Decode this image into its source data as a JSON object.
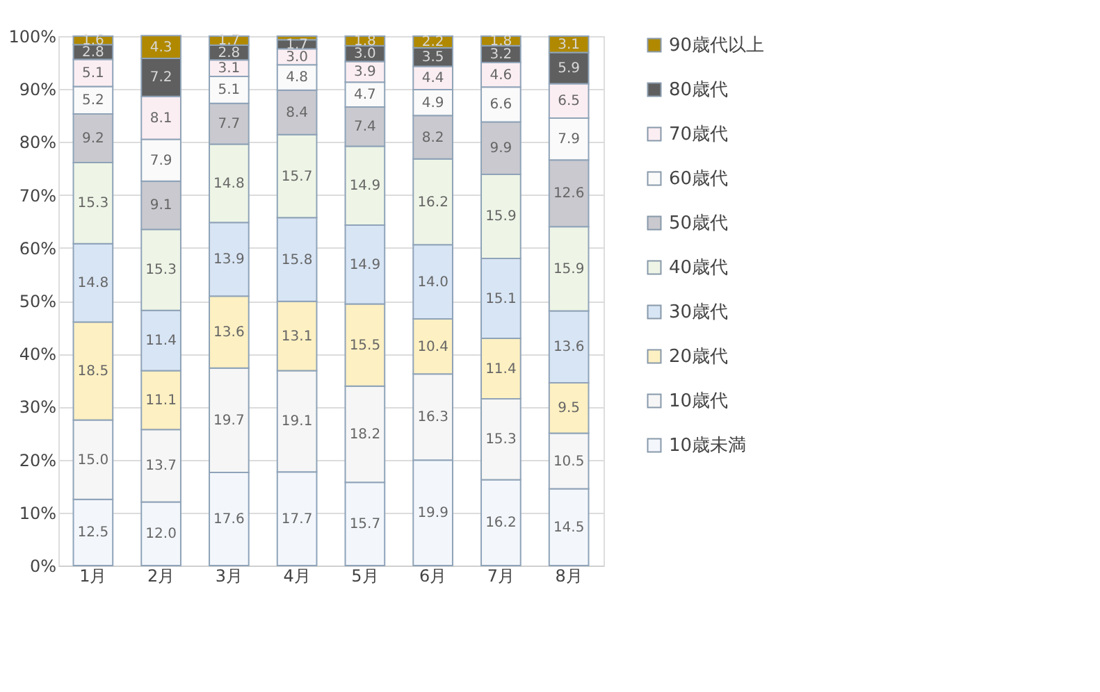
{
  "chart_data": {
    "type": "bar",
    "stacked": true,
    "categories": [
      "1月",
      "2月",
      "3月",
      "4月",
      "5月",
      "6月",
      "7月",
      "8月"
    ],
    "series": [
      {
        "name": "10歳未満",
        "color": "#f3f7fc",
        "values": [
          12.5,
          12.0,
          17.6,
          17.7,
          15.7,
          19.9,
          16.2,
          14.5
        ]
      },
      {
        "name": "10歳代",
        "color": "#f6f6f6",
        "values": [
          15.0,
          13.7,
          19.7,
          19.1,
          18.2,
          16.3,
          15.3,
          10.5
        ]
      },
      {
        "name": "20歳代",
        "color": "#fdf0c2",
        "values": [
          18.5,
          11.1,
          13.6,
          13.1,
          15.5,
          10.4,
          11.4,
          9.5
        ]
      },
      {
        "name": "30歳代",
        "color": "#d8e5f5",
        "values": [
          14.8,
          11.4,
          13.9,
          15.8,
          14.9,
          14.0,
          15.1,
          13.6
        ]
      },
      {
        "name": "40歳代",
        "color": "#eef5e6",
        "values": [
          15.3,
          15.3,
          14.8,
          15.7,
          14.9,
          16.2,
          15.9,
          15.9
        ]
      },
      {
        "name": "50歳代",
        "color": "#c9c9cf",
        "values": [
          9.2,
          9.1,
          7.7,
          8.4,
          7.4,
          8.2,
          9.9,
          12.6
        ]
      },
      {
        "name": "60歳代",
        "color": "#fafafa",
        "values": [
          5.2,
          7.9,
          5.1,
          4.8,
          4.7,
          4.9,
          6.6,
          7.9
        ]
      },
      {
        "name": "70歳代",
        "color": "#fbeef2",
        "values": [
          5.1,
          8.1,
          3.1,
          3.0,
          3.9,
          4.4,
          4.6,
          6.5
        ]
      },
      {
        "name": "80歳代",
        "color": "#5f5f5f",
        "values": [
          2.8,
          7.2,
          2.8,
          1.7,
          3.0,
          3.5,
          3.2,
          5.9
        ]
      },
      {
        "name": "90歳代以上",
        "color": "#b08900",
        "values": [
          1.6,
          4.3,
          1.7,
          0.7,
          1.8,
          2.2,
          1.8,
          3.1
        ]
      }
    ],
    "ylim": [
      0,
      100
    ],
    "yticks": [
      {
        "value": 0,
        "label": "0%"
      },
      {
        "value": 10,
        "label": "10%"
      },
      {
        "value": 20,
        "label": "20%"
      },
      {
        "value": 30,
        "label": "30%"
      },
      {
        "value": 40,
        "label": "40%"
      },
      {
        "value": 50,
        "label": "50%"
      },
      {
        "value": 60,
        "label": "60%"
      },
      {
        "value": 70,
        "label": "70%"
      },
      {
        "value": 80,
        "label": "80%"
      },
      {
        "value": 90,
        "label": "90%"
      },
      {
        "value": 100,
        "label": "100%"
      }
    ],
    "grid": "y",
    "legend": "right",
    "value_labels": [
      [
        "12.5",
        "15.0",
        "18.5",
        "14.8",
        "15.3",
        "9.2",
        "5.2",
        "5.1",
        "2.8",
        "1.6"
      ],
      [
        "12.0",
        "13.7",
        "11.1",
        "11.4",
        "15.3",
        "9.1",
        "7.9",
        "8.1",
        "7.2",
        "4.3"
      ],
      [
        "17.6",
        "19.7",
        "13.6",
        "13.9",
        "14.8",
        "7.7",
        "5.1",
        "3.1",
        "2.8",
        "1.7"
      ],
      [
        "17.7",
        "19.1",
        "13.1",
        "15.8",
        "15.7",
        "8.4",
        "4.8",
        "3.0",
        "1.7",
        null
      ],
      [
        "15.7",
        "18.2",
        "15.5",
        "14.9",
        "14.9",
        "7.4",
        "4.7",
        "3.9",
        "3.0",
        "1.8"
      ],
      [
        "19.9",
        "16.3",
        "10.4",
        "14.0",
        "16.2",
        "8.2",
        "4.9",
        "4.4",
        "3.5",
        "2.2"
      ],
      [
        "16.2",
        "15.3",
        "11.4",
        "15.1",
        "15.9",
        "9.9",
        "6.6",
        "4.6",
        "3.2",
        "1.8"
      ],
      [
        "14.5",
        "10.5",
        "9.5",
        "13.6",
        "15.9",
        "12.6",
        "7.9",
        "6.5",
        "5.9",
        "3.1"
      ]
    ]
  }
}
